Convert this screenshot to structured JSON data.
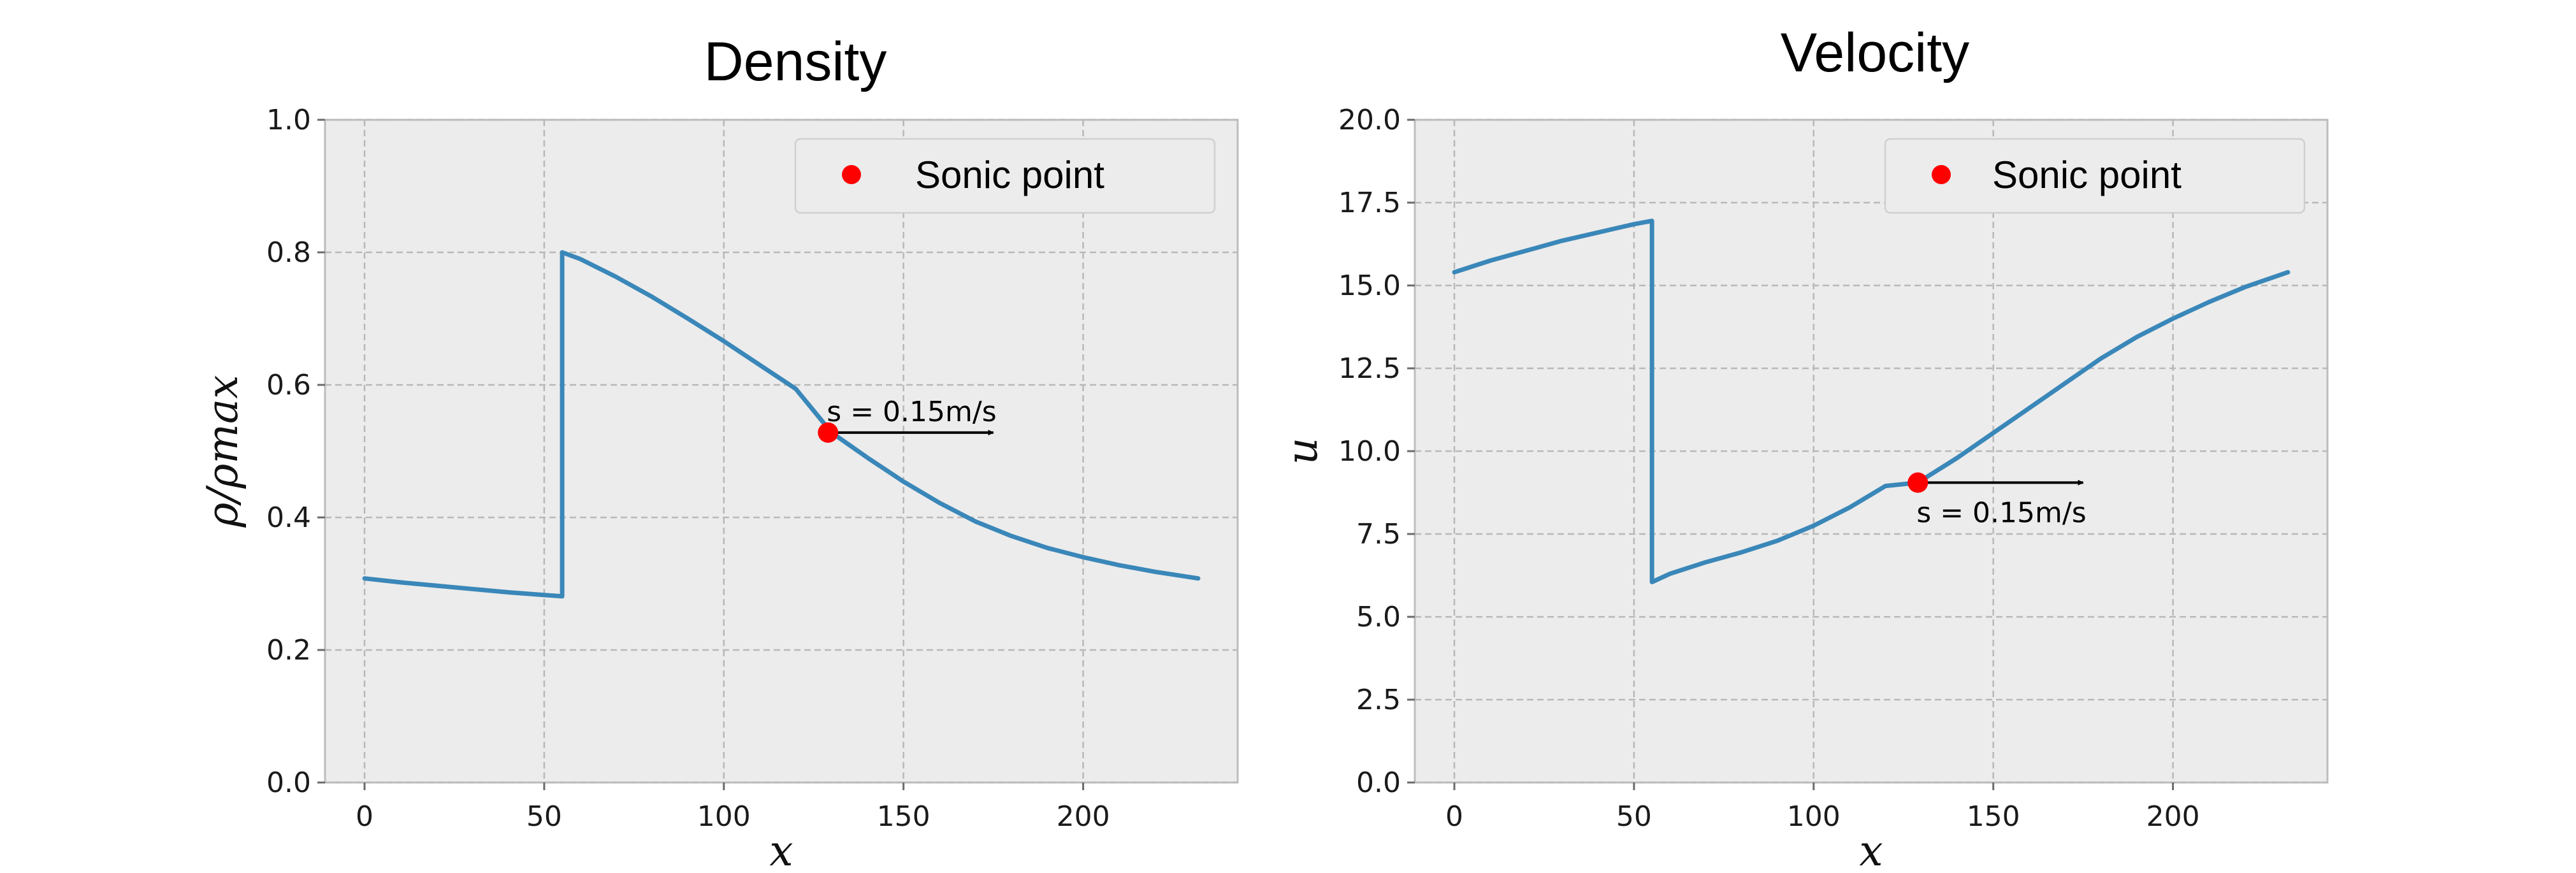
{
  "chart_data": [
    {
      "type": "line",
      "title": "Density",
      "xlabel": "x",
      "ylabel": "ρ/ρmax",
      "xlim": [
        -11,
        243
      ],
      "ylim": [
        0.0,
        1.0
      ],
      "xticks": [
        0,
        50,
        100,
        150,
        200
      ],
      "xtick_labels": [
        "0",
        "50",
        "100",
        "150",
        "200"
      ],
      "yticks": [
        0.0,
        0.2,
        0.4,
        0.6,
        0.8,
        1.0
      ],
      "ytick_labels": [
        "0.0",
        "0.2",
        "0.4",
        "0.6",
        "0.8",
        "1.0"
      ],
      "grid": true,
      "legend": {
        "position": "top-right",
        "entries": [
          "Sonic point"
        ]
      },
      "series": [
        {
          "name": "density",
          "color": "#3a87b9",
          "x": [
            0,
            10,
            20,
            30,
            40,
            50,
            55,
            55,
            60,
            70,
            80,
            90,
            100,
            110,
            120,
            130,
            140,
            150,
            160,
            170,
            180,
            190,
            200,
            210,
            220,
            232
          ],
          "y": [
            0.308,
            0.302,
            0.297,
            0.292,
            0.287,
            0.283,
            0.281,
            0.8,
            0.79,
            0.763,
            0.733,
            0.7,
            0.666,
            0.63,
            0.594,
            0.528,
            0.49,
            0.454,
            0.422,
            0.394,
            0.372,
            0.354,
            0.34,
            0.328,
            0.318,
            0.308
          ]
        }
      ],
      "sonic_point": {
        "label": "Sonic point",
        "color": "#ff0000",
        "x": 129,
        "y": 0.528,
        "annotation": "s = 0.15m/s",
        "arrow_to_x": 175
      }
    },
    {
      "type": "line",
      "title": "Velocity",
      "xlabel": "x",
      "ylabel": "u",
      "xlim": [
        -11,
        243
      ],
      "ylim": [
        0.0,
        20.0
      ],
      "xticks": [
        0,
        50,
        100,
        150,
        200
      ],
      "xtick_labels": [
        "0",
        "50",
        "100",
        "150",
        "200"
      ],
      "yticks": [
        0.0,
        2.5,
        5.0,
        7.5,
        10.0,
        12.5,
        15.0,
        17.5,
        20.0
      ],
      "ytick_labels": [
        "0.0",
        "2.5",
        "5.0",
        "7.5",
        "10.0",
        "12.5",
        "15.0",
        "17.5",
        "20.0"
      ],
      "grid": true,
      "legend": {
        "position": "top-right",
        "entries": [
          "Sonic point"
        ]
      },
      "series": [
        {
          "name": "velocity",
          "color": "#3a87b9",
          "x": [
            0,
            10,
            20,
            30,
            40,
            50,
            55,
            55,
            60,
            70,
            80,
            90,
            100,
            110,
            120,
            129,
            140,
            150,
            160,
            170,
            180,
            190,
            200,
            210,
            220,
            232
          ],
          "y": [
            15.4,
            15.75,
            16.05,
            16.35,
            16.6,
            16.85,
            16.95,
            6.05,
            6.3,
            6.65,
            6.95,
            7.3,
            7.75,
            8.3,
            8.95,
            9.05,
            9.8,
            10.55,
            11.3,
            12.05,
            12.8,
            13.45,
            14.0,
            14.5,
            14.95,
            15.4
          ]
        }
      ],
      "sonic_point": {
        "label": "Sonic point",
        "color": "#ff0000",
        "x": 129,
        "y": 9.05,
        "annotation": "s = 0.15m/s",
        "arrow_to_x": 175
      }
    }
  ]
}
